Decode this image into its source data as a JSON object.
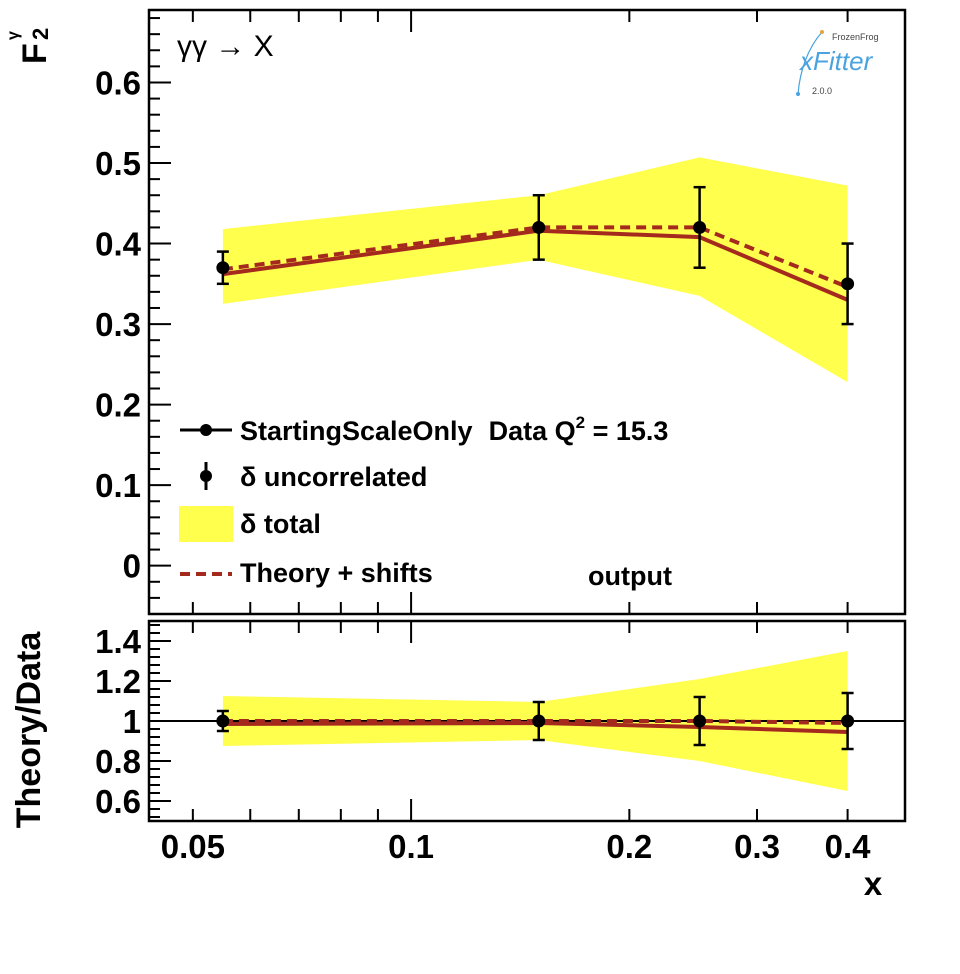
{
  "chart_data": {
    "type": "line",
    "x_scale": "log",
    "colors": {
      "band": "#ffff4d",
      "theory": "#a52a1e",
      "data": "#000000"
    },
    "process_label": "γγ → X",
    "logo": {
      "brand": "FrozenFrog",
      "name": "xFitter",
      "version": "2.0.0"
    },
    "output_label": "output",
    "top": {
      "ylabel_main": "F",
      "ylabel_sub": "2",
      "ylabel_sup": "γ",
      "ylim": [
        -0.06,
        0.69
      ],
      "yticks": [
        {
          "v": 0,
          "label": "0"
        },
        {
          "v": 0.1,
          "label": "0.1"
        },
        {
          "v": 0.2,
          "label": "0.2"
        },
        {
          "v": 0.3,
          "label": "0.3"
        },
        {
          "v": 0.4,
          "label": "0.4"
        },
        {
          "v": 0.5,
          "label": "0.5"
        },
        {
          "v": 0.6,
          "label": "0.6"
        }
      ],
      "data": {
        "x": [
          0.055,
          0.15,
          0.25,
          0.4
        ],
        "y": [
          0.37,
          0.42,
          0.42,
          0.35
        ],
        "err": [
          0.02,
          0.04,
          0.05,
          0.05
        ]
      },
      "band_low": [
        0.325,
        0.38,
        0.335,
        0.228
      ],
      "band_high": [
        0.418,
        0.46,
        0.507,
        0.472
      ],
      "theory": [
        0.362,
        0.416,
        0.408,
        0.33
      ],
      "theory_shifts": [
        0.368,
        0.42,
        0.42,
        0.346
      ]
    },
    "ratio": {
      "ylabel": "Theory/Data",
      "ylim": [
        0.5,
        1.5
      ],
      "yticks": [
        {
          "v": 0.6,
          "label": "0.6"
        },
        {
          "v": 0.8,
          "label": "0.8"
        },
        {
          "v": 1.0,
          "label": "1"
        },
        {
          "v": 1.2,
          "label": "1.2"
        },
        {
          "v": 1.4,
          "label": "1.4"
        }
      ],
      "data": {
        "x": [
          0.055,
          0.15,
          0.25,
          0.4
        ],
        "y": [
          1,
          1,
          1,
          1
        ],
        "err": [
          0.05,
          0.095,
          0.12,
          0.14
        ]
      },
      "band_low": [
        0.875,
        0.905,
        0.8,
        0.65
      ],
      "band_high": [
        1.125,
        1.095,
        1.21,
        1.35
      ],
      "theory": [
        0.985,
        0.99,
        0.97,
        0.945
      ],
      "theory_shifts": [
        1.0,
        1.0,
        1.0,
        0.99
      ]
    },
    "xlabel": "x",
    "xlim": [
      0.0435,
      0.48
    ],
    "xticks": [
      {
        "v": 0.05,
        "label": "0.05"
      },
      {
        "v": 0.1,
        "label": "0.1"
      },
      {
        "v": 0.2,
        "label": "0.2"
      },
      {
        "v": 0.3,
        "label": "0.3"
      },
      {
        "v": 0.4,
        "label": "0.4"
      }
    ],
    "legend": {
      "header_series": "StartingScaleOnly",
      "header_data": "Data Q",
      "header_q_sup": "2",
      "header_value": " = 15.3",
      "uncorrelated": "δ uncorrelated",
      "total": "δ total",
      "theory_shifts": "Theory + shifts"
    }
  }
}
